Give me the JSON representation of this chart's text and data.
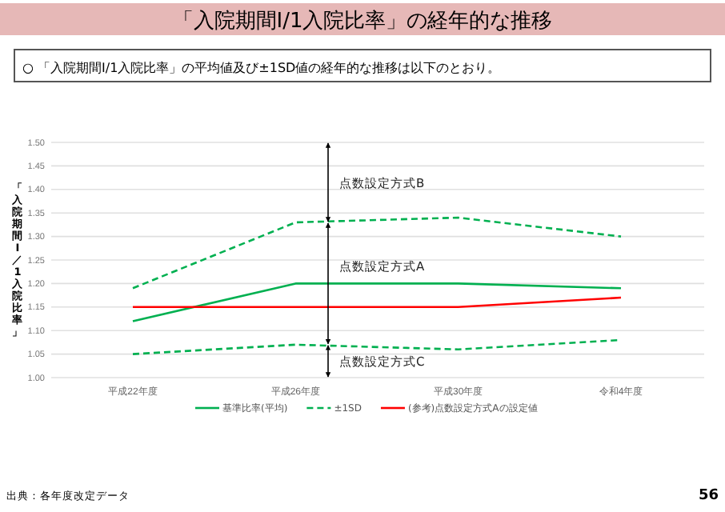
{
  "chart_data": {
    "type": "line",
    "title": "「入院期間Ⅰ/1入院比率」の経年的な推移",
    "subtitle": "○ 「入院期間Ⅰ/1入院比率」の平均値及び±1SD値の経年的な推移は以下のとおり。",
    "ylabel": "「入院期間Ⅰ／1入院比率」",
    "categories": [
      "平成22年度",
      "平成26年度",
      "平成30年度",
      "令和4年度"
    ],
    "series": [
      {
        "name": "基準比率(平均)",
        "color": "#00b050",
        "values": [
          1.12,
          1.2,
          1.2,
          1.19
        ],
        "line_style": "solid"
      },
      {
        "name": "±1SD",
        "color": "#00b050",
        "values": [
          1.19,
          1.33,
          1.34,
          1.3
        ],
        "line_style": "dashed"
      },
      {
        "color": "#00b050",
        "values": [
          1.05,
          1.07,
          1.06,
          1.08
        ],
        "line_style": "dashed"
      },
      {
        "name": "(参考)点数設定方式Aの設定値",
        "color": "#ff0000",
        "values": [
          1.15,
          1.15,
          1.15,
          1.17
        ],
        "line_style": "solid"
      }
    ],
    "ylim": [
      1,
      1.5
    ],
    "yticks": [
      {
        "value": 1,
        "label": "1.00"
      },
      {
        "value": 1.05,
        "label": "1.05"
      },
      {
        "value": 1.1,
        "label": "1.10"
      },
      {
        "value": 1.15,
        "label": "1.15"
      },
      {
        "value": 1.2,
        "label": "1.20"
      },
      {
        "value": 1.25,
        "label": "1.25"
      },
      {
        "value": 1.3,
        "label": "1.30"
      },
      {
        "value": 1.35,
        "label": "1.35"
      },
      {
        "value": 1.4,
        "label": "1.40"
      },
      {
        "value": 1.45,
        "label": "1.45"
      },
      {
        "value": 1.5,
        "label": "1.50"
      }
    ],
    "grid": "y",
    "legend": "bottom",
    "marker": "none",
    "annotations": [
      "点数設定方式B",
      "点数設定方式A",
      "点数設定方式C",
      "出典：各年度改定データ",
      "56"
    ]
  }
}
